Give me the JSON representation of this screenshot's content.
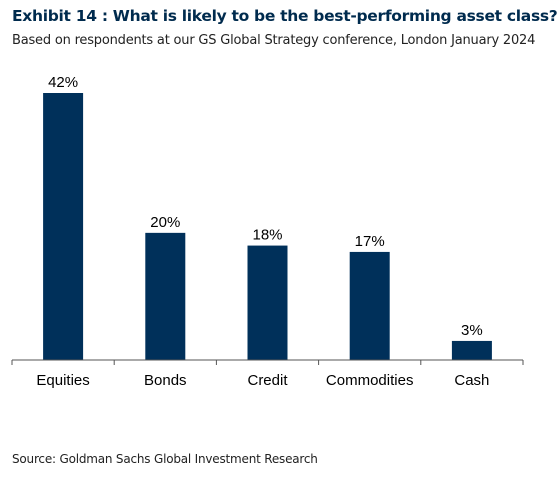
{
  "title": "Exhibit 14 : What is likely to be the best-performing asset class?",
  "subtitle": "Based on respondents at our GS Global Strategy conference, London January 2024",
  "source": "Source: Goldman Sachs Global Investment Research",
  "chart_data": {
    "type": "bar",
    "categories": [
      "Equities",
      "Bonds",
      "Credit",
      "Commodities",
      "Cash"
    ],
    "values": [
      42,
      20,
      18,
      17,
      3
    ],
    "value_labels": [
      "42%",
      "20%",
      "18%",
      "17%",
      "3%"
    ],
    "ylim": [
      0,
      42
    ],
    "grid": false,
    "bar_color": "#00305a"
  }
}
